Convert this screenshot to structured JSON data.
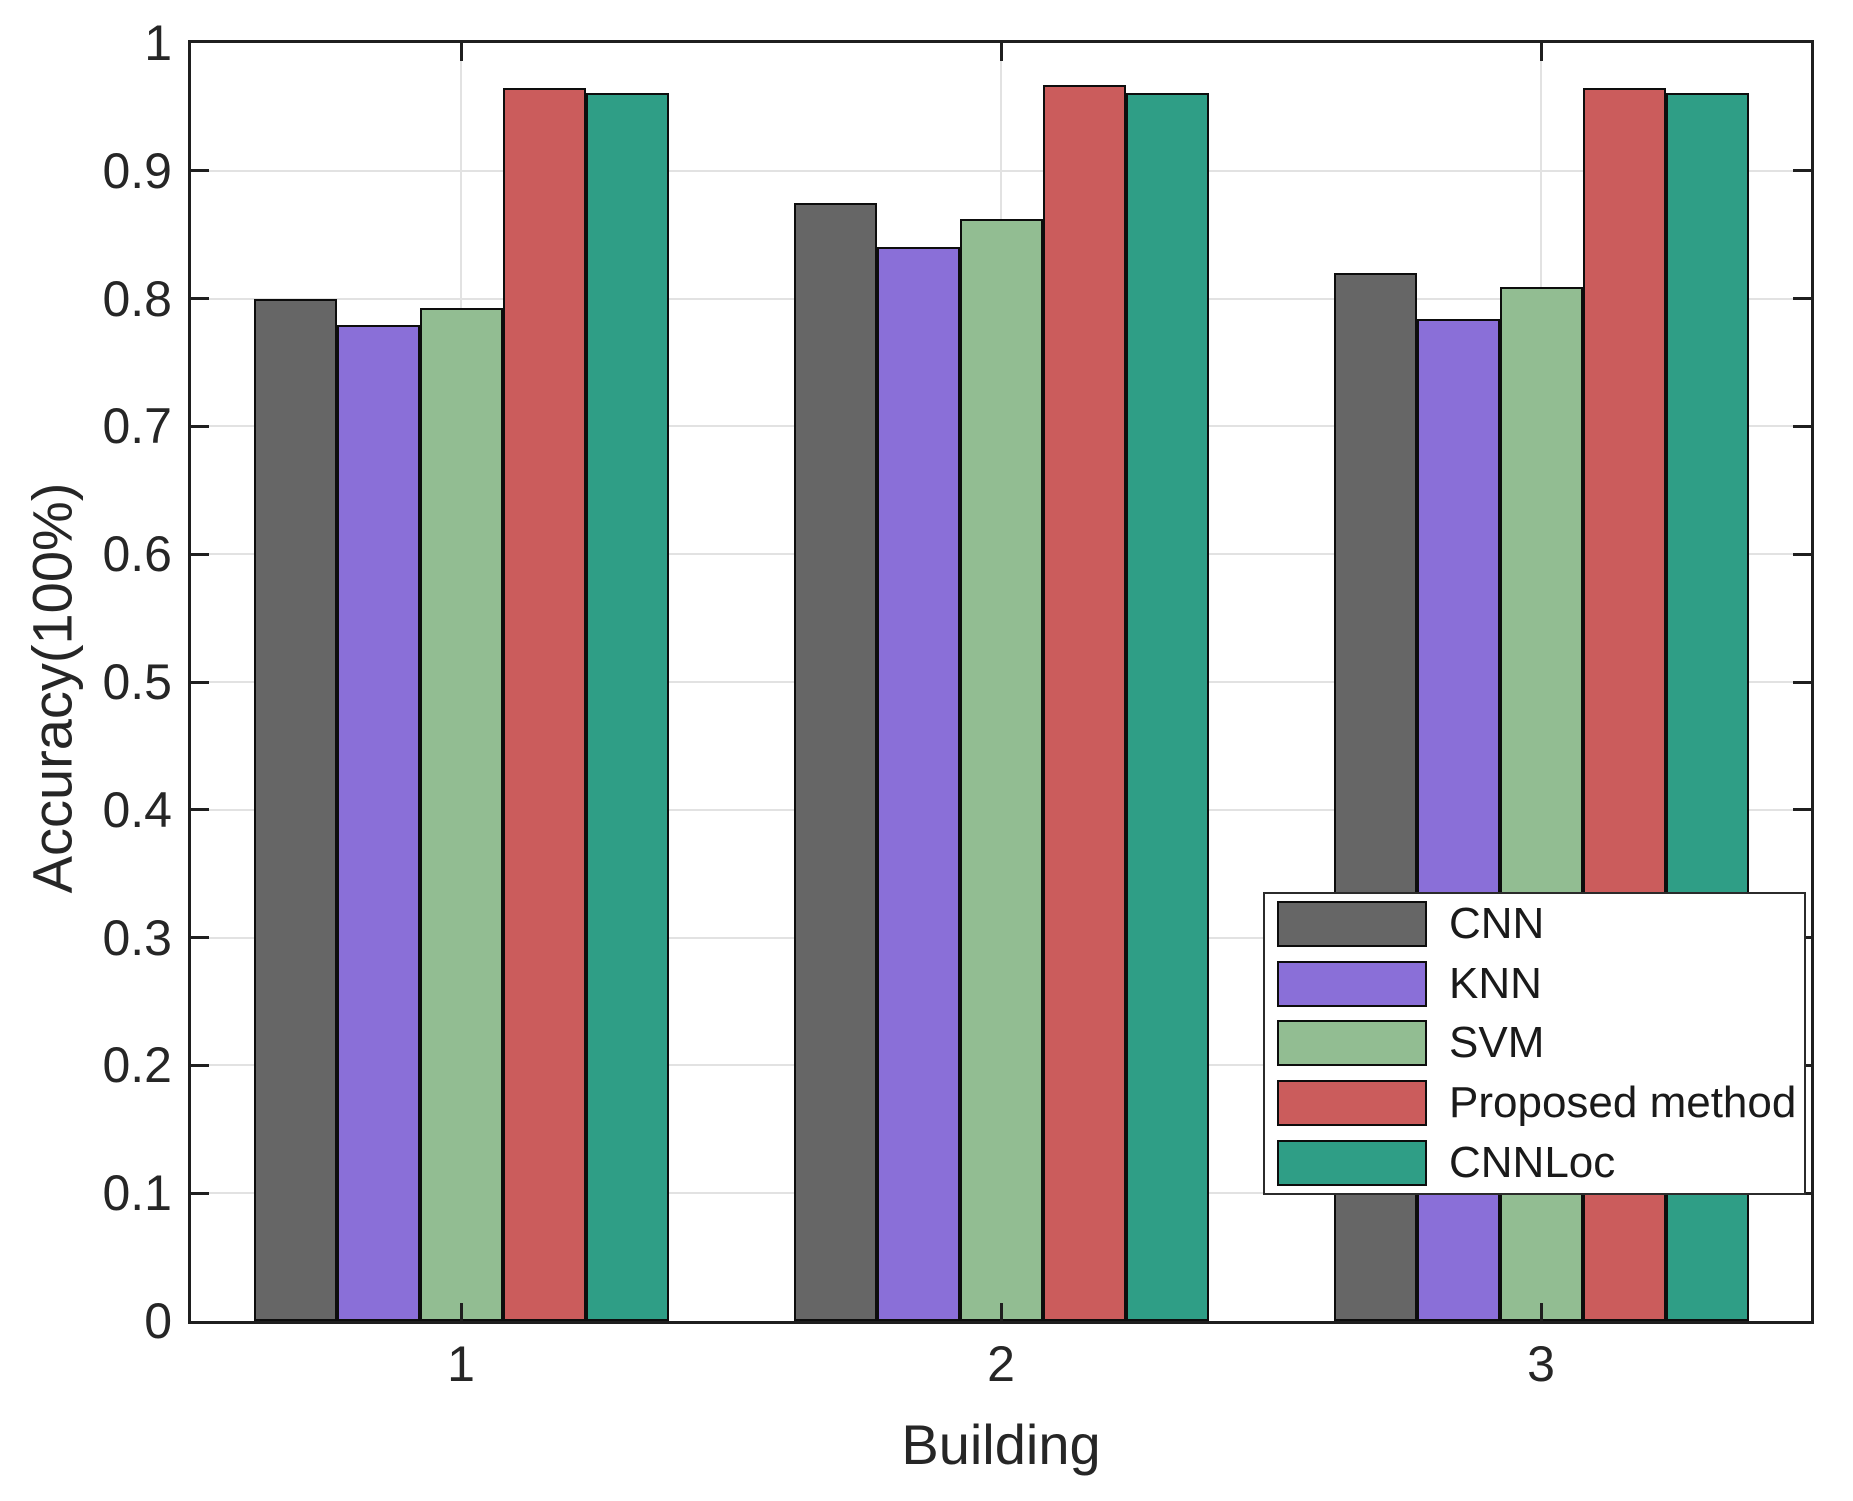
{
  "chart_data": {
    "type": "bar",
    "title": "",
    "xlabel": "Building",
    "ylabel": "Accuracy(100%)",
    "categories": [
      "1",
      "2",
      "3"
    ],
    "series": [
      {
        "name": "CNN",
        "color": "#666666",
        "values": [
          0.8,
          0.875,
          0.82
        ]
      },
      {
        "name": "KNN",
        "color": "#8A6FD8",
        "values": [
          0.779,
          0.84,
          0.784
        ]
      },
      {
        "name": "SVM",
        "color": "#92BD92",
        "values": [
          0.793,
          0.862,
          0.809
        ]
      },
      {
        "name": "Proposed method",
        "color": "#CB5C5C",
        "values": [
          0.965,
          0.967,
          0.965
        ]
      },
      {
        "name": "CNNLoc",
        "color": "#2F9E86",
        "values": [
          0.961,
          0.961,
          0.961
        ]
      }
    ],
    "ylim": [
      0,
      1
    ],
    "yticks": [
      0,
      0.1,
      0.2,
      0.3,
      0.4,
      0.5,
      0.6,
      0.7,
      0.8,
      0.9,
      1
    ],
    "ytick_labels": [
      "0",
      "0.1",
      "0.2",
      "0.3",
      "0.4",
      "0.5",
      "0.6",
      "0.7",
      "0.8",
      "0.9",
      "1"
    ],
    "grid": true,
    "legend_position": "lower right",
    "bar_edge_color": "#0d0d0d",
    "axis_color": "#1f1f1f",
    "grid_color": "#e2e2e2",
    "background": "#ffffff"
  }
}
